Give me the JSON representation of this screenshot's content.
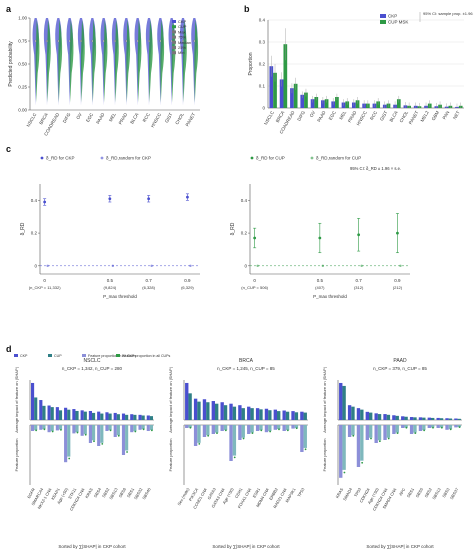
{
  "colors": {
    "ckp": "#4a4fcf",
    "cup": "#2e9a45",
    "cup_msk": "#57b36a",
    "teal": "#2f7f86",
    "grid": "#d9d9d9",
    "axis": "#555555"
  },
  "panels": {
    "a": "a",
    "b": "b",
    "c": "c",
    "d": "d"
  },
  "chart_data": [
    {
      "id": "a",
      "type": "violin",
      "ylabel": "Predicted probability",
      "ylim": [
        0,
        1
      ],
      "yticks": [
        "0.00",
        "0.25",
        "0.50",
        "0.75",
        "1.00"
      ],
      "categories": [
        "NSCLC",
        "BRCA",
        "COADREAD",
        "DIFG",
        "OV",
        "EGC",
        "PAAD",
        "MEL",
        "PRAD",
        "BLCA",
        "RCC",
        "HNSCC",
        "GIST",
        "CHOL",
        "PANET"
      ],
      "legend": [
        "CKP",
        "CUP",
        "Max",
        "75%",
        "Median",
        "25%",
        "Min"
      ]
    },
    {
      "id": "b",
      "type": "bar",
      "ylabel": "Proportion",
      "ylim": [
        0,
        0.4
      ],
      "yticks": [
        "0",
        "0.1",
        "0.2",
        "0.3",
        "0.4"
      ],
      "categories": [
        "NSCLC",
        "BRCA",
        "COADREAD",
        "DIFG",
        "OV",
        "PAAD",
        "EGC",
        "MEL",
        "PRAD",
        "HNSCC",
        "RCC",
        "GIST",
        "BLCA",
        "CHOL",
        "PANET",
        "MEL2",
        "GBM",
        "PAN",
        "NET"
      ],
      "series": [
        {
          "name": "CKP",
          "values": [
            0.19,
            0.13,
            0.09,
            0.06,
            0.04,
            0.035,
            0.03,
            0.025,
            0.025,
            0.02,
            0.02,
            0.015,
            0.015,
            0.012,
            0.01,
            0.01,
            0.008,
            0.006,
            0.005
          ]
        },
        {
          "name": "CUP MSK",
          "values": [
            0.16,
            0.29,
            0.11,
            0.07,
            0.05,
            0.04,
            0.05,
            0.03,
            0.035,
            0.02,
            0.03,
            0.02,
            0.04,
            0.01,
            0.008,
            0.02,
            0.015,
            0.01,
            0.01
          ]
        }
      ],
      "legend_note": "95% CI: sample prop. ±1.96 × s.e."
    },
    {
      "id": "c-left",
      "type": "scatter",
      "ylabel": "δ_RD",
      "yticks": [
        "0.4",
        "0.2",
        "0"
      ],
      "ylim": [
        -0.05,
        0.5
      ],
      "legend": [
        "δ_RD for CKP",
        "δ_RD,random for CKP"
      ],
      "x": [
        "0",
        "0.5",
        "0.7",
        "0.9"
      ],
      "xlabel": "P_max threshold",
      "n_labels": [
        "(n_CKP = 11,332)",
        "(9,824)",
        "(6,328)",
        "(6,329)"
      ],
      "series": [
        {
          "name": "δ_RD for CKP",
          "values": [
            0.39,
            0.41,
            0.41,
            0.42
          ],
          "err": [
            0.02,
            0.02,
            0.02,
            0.02
          ]
        },
        {
          "name": "δ_RD,random for CKP",
          "values": [
            0.0,
            0.0,
            0.0,
            0.0
          ]
        }
      ]
    },
    {
      "id": "c-right",
      "type": "scatter",
      "ylabel": "δ_RD",
      "yticks": [
        "0.4",
        "0.2",
        "0"
      ],
      "ylim": [
        -0.05,
        0.5
      ],
      "legend": [
        "δ_RD for CUP",
        "δ_RD,random for CUP"
      ],
      "note": "95% CI: δ_RD ± 1.96 × s.e.",
      "x": [
        "0",
        "0.5",
        "0.7",
        "0.9"
      ],
      "xlabel": "P_max threshold",
      "n_labels": [
        "(n_CUP = 506)",
        "(407)",
        "(312)",
        "(212)"
      ],
      "series": [
        {
          "name": "δ_RD for CUP",
          "values": [
            0.17,
            0.17,
            0.19,
            0.2
          ],
          "err": [
            0.06,
            0.09,
            0.1,
            0.12
          ]
        },
        {
          "name": "δ_RD,random for CUP",
          "values": [
            0.0,
            0.0,
            0.0,
            0.0
          ]
        }
      ]
    },
    {
      "id": "d-nsclc",
      "type": "bar",
      "title": "NSCLC",
      "subtitle": "n_CKP = 1,342, n_CUP = 280",
      "ylabel_top": "Average impact of feature on |SHAP|",
      "ylabel_bottom": "Feature proportion",
      "xlabel": "Sorted by ∑|SHAP| in CKP cohort",
      "categories": [
        "EGFR",
        "SMARCA4",
        "NKX2-1 CNA",
        "KEAP1",
        "Age (<50)",
        "STK11",
        "CDKN2A CNA",
        "KRAS",
        "SBS4",
        "SBS2",
        "SBS13",
        "SBS6",
        "SBS1",
        "SBS32",
        "SBS40"
      ],
      "series": [
        {
          "name": "CKP",
          "values": [
            1.15,
            0.62,
            0.45,
            0.4,
            0.38,
            0.34,
            0.3,
            0.28,
            0.26,
            0.24,
            0.22,
            0.2,
            0.18,
            0.16,
            0.14
          ]
        },
        {
          "name": "CUP",
          "values": [
            0.7,
            0.44,
            0.4,
            0.3,
            0.32,
            0.28,
            0.26,
            0.22,
            0.2,
            0.2,
            0.18,
            0.16,
            0.16,
            0.14,
            0.12
          ]
        }
      ],
      "proportion": [
        0.1,
        0.08,
        0.12,
        0.09,
        0.62,
        0.14,
        0.18,
        0.3,
        0.35,
        0.1,
        0.2,
        0.5,
        0.12,
        0.08,
        0.1
      ],
      "legend": [
        "CKP",
        "CUP",
        "Feature proportion in all CKPs",
        "Feature proportion in all CUPs"
      ]
    },
    {
      "id": "d-brca",
      "type": "bar",
      "title": "BRCA",
      "subtitle": "n_CKP = 1,245, n_CUP = 85",
      "ylabel_top": "Average impact of feature on |SHAP|",
      "ylabel_bottom": "Feature proportion",
      "xlabel": "Sorted by ∑|SHAP| in CKP cohort",
      "categories": [
        "Sex (male)",
        "PIK3CA",
        "CCND1 CNA",
        "GATA3",
        "GATA3 CNA",
        "Age (<50)",
        "CDH1",
        "FOXA1 CNA",
        "ESR1",
        "MDM4 CNA",
        "ERBB2",
        "RAD21 CNA",
        "MAP3K1",
        "TP53"
      ],
      "series": [
        {
          "name": "CKP",
          "values": [
            1.25,
            0.72,
            0.7,
            0.64,
            0.6,
            0.55,
            0.5,
            0.45,
            0.4,
            0.38,
            0.35,
            0.32,
            0.3,
            0.28
          ]
        },
        {
          "name": "CUP",
          "values": [
            0.9,
            0.62,
            0.6,
            0.55,
            0.5,
            0.45,
            0.4,
            0.4,
            0.36,
            0.33,
            0.3,
            0.28,
            0.26,
            0.25
          ]
        }
      ],
      "proportion": [
        0.05,
        0.35,
        0.2,
        0.15,
        0.1,
        0.6,
        0.25,
        0.15,
        0.1,
        0.12,
        0.08,
        0.1,
        0.06,
        0.45
      ],
      "legend": []
    },
    {
      "id": "d-paad",
      "type": "bar",
      "title": "PAAD",
      "subtitle": "n_CKP = 379, n_CUP = 85",
      "ylabel_top": "Average impact of feature on |SHAP|",
      "ylabel_bottom": "Feature proportion",
      "xlabel": "Sorted by ∑|SHAP| in CKP cohort",
      "categories": [
        "KRAS",
        "SMAD4",
        "TP53",
        "CDKN2A",
        "Age (<50)",
        "CDKN2A CNA",
        "SMAD4 CNA",
        "APC",
        "SBS1",
        "SBS5",
        "SBS2",
        "SBS13",
        "SBS3",
        "SBS37"
      ],
      "series": [
        {
          "name": "CKP",
          "values": [
            2.5,
            1.0,
            0.8,
            0.55,
            0.45,
            0.4,
            0.32,
            0.25,
            0.2,
            0.18,
            0.16,
            0.14,
            0.12,
            0.1
          ]
        },
        {
          "name": "CUP",
          "values": [
            2.3,
            0.9,
            0.7,
            0.5,
            0.4,
            0.35,
            0.28,
            0.22,
            0.18,
            0.16,
            0.14,
            0.12,
            0.1,
            0.08
          ]
        }
      ],
      "proportion": [
        0.88,
        0.2,
        0.7,
        0.25,
        0.3,
        0.25,
        0.15,
        0.05,
        0.15,
        0.1,
        0.05,
        0.05,
        0.08,
        0.04
      ],
      "legend": []
    }
  ]
}
